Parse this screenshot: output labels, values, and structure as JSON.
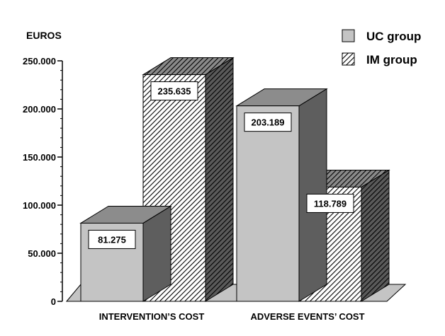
{
  "chart_data": {
    "type": "bar",
    "title": "",
    "ylabel": "EUROS",
    "xlabel": "",
    "categories": [
      "INTERVENTION’S COST",
      "ADVERSE EVENTS’ COST"
    ],
    "series": [
      {
        "name": "UC group",
        "values": [
          81275,
          203189
        ],
        "labels": [
          "81.275",
          "203.189"
        ],
        "color": "#c4c4c4",
        "pattern": "solid"
      },
      {
        "name": "IM group",
        "values": [
          235635,
          118789
        ],
        "labels": [
          "235.635",
          "118.789"
        ],
        "color": "#ffffff",
        "pattern": "diagonal-hatch"
      }
    ],
    "ylim": [
      0,
      250000
    ],
    "yticks": [
      0,
      50000,
      100000,
      150000,
      200000,
      250000
    ],
    "ytick_labels": [
      "0",
      "50.000",
      "100.000",
      "150.000",
      "200.000",
      "250.000"
    ],
    "grid": false,
    "legend_position": "top-right",
    "style": "3d-bars"
  }
}
